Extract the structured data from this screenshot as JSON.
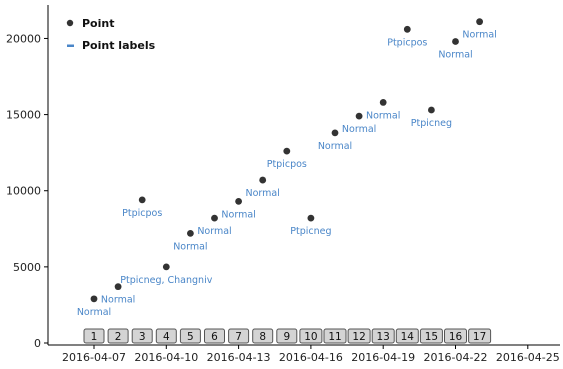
{
  "chart_data": {
    "type": "scatter",
    "title": "",
    "xlabel": "",
    "ylabel": "",
    "ylim": [
      0,
      22000
    ],
    "xlim": [
      "2016-04-06",
      "2016-04-26"
    ],
    "y_ticks": [
      0,
      5000,
      10000,
      15000,
      20000
    ],
    "y_tick_labels": [
      "0",
      "5000",
      "10000",
      "15000",
      "20000"
    ],
    "x_ticks": [
      "2016-04-07",
      "2016-04-10",
      "2016-04-13",
      "2016-04-16",
      "2016-04-19",
      "2016-04-22",
      "2016-04-25"
    ],
    "x_tick_labels": [
      "2016-04-07",
      "2016-04-10",
      "2016-04-13",
      "2016-04-16",
      "2016-04-19",
      "2016-04-22",
      "2016-04-25"
    ],
    "grid": false,
    "legend": {
      "placement": "top-left",
      "entries": [
        {
          "label": "Point",
          "marker": "dot",
          "color": "#333333"
        },
        {
          "label": "Point labels",
          "marker": "dash",
          "color": "#4a86c8"
        }
      ]
    },
    "colors": {
      "point": "#333333",
      "label": "#4a86c8",
      "box_fill": "#d4d4d4",
      "box_border": "#555555"
    },
    "series": [
      {
        "points": [
          {
            "index": "1",
            "x": "2016-04-07",
            "y": 2900,
            "label": "Normal"
          },
          {
            "index": "2",
            "x": "2016-04-08",
            "y": 3700,
            "label": "Normal"
          },
          {
            "index": "3",
            "x": "2016-04-09",
            "y": 9400,
            "label": "Ptpicpos"
          },
          {
            "index": "4",
            "x": "2016-04-10",
            "y": 5000,
            "label": "Ptpicneg, Changniv"
          },
          {
            "index": "5",
            "x": "2016-04-11",
            "y": 7200,
            "label": "Normal"
          },
          {
            "index": "6",
            "x": "2016-04-12",
            "y": 8200,
            "label": "Normal"
          },
          {
            "index": "7",
            "x": "2016-04-13",
            "y": 9300,
            "label": "Normal"
          },
          {
            "index": "8",
            "x": "2016-04-14",
            "y": 10700,
            "label": "Normal"
          },
          {
            "index": "9",
            "x": "2016-04-15",
            "y": 12600,
            "label": "Ptpicpos"
          },
          {
            "index": "10",
            "x": "2016-04-16",
            "y": 8200,
            "label": "Ptpicneg"
          },
          {
            "index": "11",
            "x": "2016-04-17",
            "y": 13800,
            "label": "Normal"
          },
          {
            "index": "12",
            "x": "2016-04-18",
            "y": 14900,
            "label": "Normal"
          },
          {
            "index": "13",
            "x": "2016-04-19",
            "y": 15800,
            "label": "Normal"
          },
          {
            "index": "14",
            "x": "2016-04-20",
            "y": 20600,
            "label": "Ptpicpos"
          },
          {
            "index": "15",
            "x": "2016-04-21",
            "y": 15300,
            "label": "Ptpicneg"
          },
          {
            "index": "16",
            "x": "2016-04-22",
            "y": 19800,
            "label": "Normal"
          },
          {
            "index": "17",
            "x": "2016-04-23",
            "y": 21100,
            "label": "Normal"
          }
        ]
      }
    ]
  }
}
